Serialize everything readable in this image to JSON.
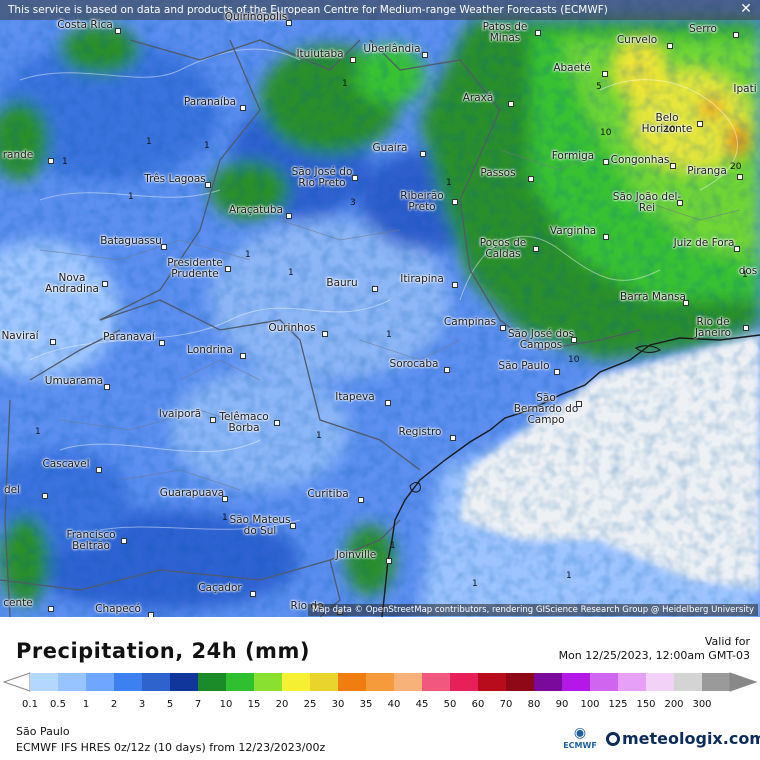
{
  "banner": {
    "text": "This service is based on data and products of the European Centre for Medium-range Weather Forecasts (ECMWF)",
    "close_glyph": "✕"
  },
  "map_credit": "Map data © OpenStreetMap contributors, rendering GIScience Research Group @ Heidelberg University",
  "cities": [
    {
      "name": "Costa Rica"
    },
    {
      "name": "Quirinópolis"
    },
    {
      "name": "Patos de Minas"
    },
    {
      "name": "Serro"
    },
    {
      "name": "Curvelo"
    },
    {
      "name": "Ituiutaba"
    },
    {
      "name": "Uberlândia"
    },
    {
      "name": "Abaeté"
    },
    {
      "name": "Ipati"
    },
    {
      "name": "Paranaíba"
    },
    {
      "name": "Araxá"
    },
    {
      "name": "Belo Horizonte"
    },
    {
      "name": "rande"
    },
    {
      "name": "Guaíra"
    },
    {
      "name": "Formiga"
    },
    {
      "name": "Congonhas"
    },
    {
      "name": "São José do Rio Preto"
    },
    {
      "name": "Três Lagoas"
    },
    {
      "name": "Passos"
    },
    {
      "name": "Piranga"
    },
    {
      "name": "Ribeirão Preto"
    },
    {
      "name": "São João del-Rei"
    },
    {
      "name": "Araçatuba"
    },
    {
      "name": "Varginha"
    },
    {
      "name": "Bataguassu"
    },
    {
      "name": "Poços de Caldas"
    },
    {
      "name": "Juiz de Fora"
    },
    {
      "name": "Presidente Prudente"
    },
    {
      "name": "Nova Andradina"
    },
    {
      "name": "Itirapina"
    },
    {
      "name": "Bauru"
    },
    {
      "name": "Barra Mansa"
    },
    {
      "name": "dos"
    },
    {
      "name": "Campinas"
    },
    {
      "name": "São José dos Campos"
    },
    {
      "name": "Rio de Janeiro"
    },
    {
      "name": "Naviraí"
    },
    {
      "name": "Paranavaí"
    },
    {
      "name": "Ourinhos"
    },
    {
      "name": "Londrina"
    },
    {
      "name": "Sorocaba"
    },
    {
      "name": "São Paulo"
    },
    {
      "name": "Umuarama"
    },
    {
      "name": "São Bernardo do Campo"
    },
    {
      "name": "Itapeva"
    },
    {
      "name": "Ivaiporã"
    },
    {
      "name": "Telêmaco Borba"
    },
    {
      "name": "Registro"
    },
    {
      "name": "Cascavel"
    },
    {
      "name": "del"
    },
    {
      "name": "Guarapuava"
    },
    {
      "name": "Curitiba"
    },
    {
      "name": "São Mateus do Sul"
    },
    {
      "name": "Francisco Beltrão"
    },
    {
      "name": "Joinville"
    },
    {
      "name": "Caçador"
    },
    {
      "name": "cente"
    },
    {
      "name": "Chapecó"
    },
    {
      "name": "Rio do"
    }
  ],
  "contour_labels": [
    "1",
    "3",
    "5",
    "10",
    "20"
  ],
  "legend": {
    "title": "Precipitation, 24h (mm)",
    "valid_label": "Valid for",
    "valid_date": "Mon 12/25/2023, 12:00am GMT-03",
    "levels": [
      "0.1",
      "0.5",
      "1",
      "2",
      "3",
      "5",
      "7",
      "10",
      "15",
      "20",
      "25",
      "30",
      "35",
      "40",
      "45",
      "50",
      "60",
      "70",
      "80",
      "90",
      "100",
      "125",
      "150",
      "200",
      "300"
    ],
    "colors": [
      "#b4d7ff",
      "#97c3ff",
      "#6fa6ff",
      "#3d80f0",
      "#2e62cc",
      "#10369c",
      "#1b8a29",
      "#2fc02f",
      "#8ae02e",
      "#f5f032",
      "#e8d42a",
      "#f07d10",
      "#f59b3c",
      "#f7b27a",
      "#f0587f",
      "#e8205a",
      "#b80c1c",
      "#8e0818",
      "#7a0a9c",
      "#b418e6",
      "#d066f0",
      "#e6a0f5",
      "#f2d2f7",
      "#d4d4d4",
      "#9a9a9a"
    ]
  },
  "footer": {
    "region": "São Paulo",
    "model": "ECMWF IFS HRES 0z/12z (10 days) from 12/23/2023/00z",
    "ecmwf_logo_text": "ECMWF",
    "brand": "meteologix.com"
  }
}
